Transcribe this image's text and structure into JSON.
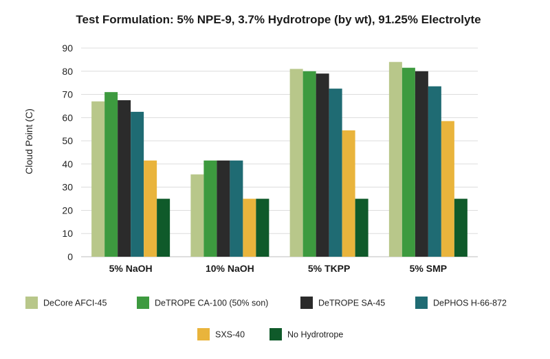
{
  "chart_data": {
    "type": "bar",
    "title": "Test Formulation: 5% NPE-9, 3.7% Hydrotrope (by wt), 91.25% Electrolyte",
    "xlabel": "",
    "ylabel": "Cloud Point (C)",
    "ylim": [
      0,
      90
    ],
    "yticks": [
      0,
      10,
      20,
      30,
      40,
      50,
      60,
      70,
      80,
      90
    ],
    "grid": true,
    "legend_position": "bottom",
    "categories": [
      "5% NaOH",
      "10% NaOH",
      "5% TKPP",
      "5% SMP"
    ],
    "series": [
      {
        "name": "DeCore AFCI-45",
        "color": "#b8c78a",
        "values": [
          67,
          35.5,
          81,
          84
        ]
      },
      {
        "name": "DeTROPE CA-100 (50% son)",
        "color": "#3d9a3f",
        "values": [
          71,
          41.5,
          80,
          81.5
        ]
      },
      {
        "name": "DeTROPE SA-45",
        "color": "#2b2b2b",
        "values": [
          67.5,
          41.5,
          79,
          80
        ]
      },
      {
        "name": "DePHOS H-66-872",
        "color": "#1f6b73",
        "values": [
          62.5,
          41.5,
          72.5,
          73.5
        ]
      },
      {
        "name": "SXS-40",
        "color": "#e9b43c",
        "values": [
          41.5,
          25,
          54.5,
          58.5
        ]
      },
      {
        "name": "No Hydrotrope",
        "color": "#0f5a2a",
        "values": [
          25,
          25,
          25,
          25
        ]
      }
    ]
  }
}
